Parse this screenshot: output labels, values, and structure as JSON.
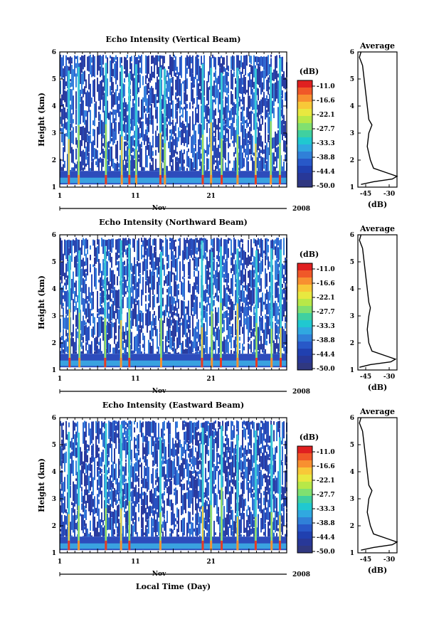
{
  "colorbar": {
    "unit": "(dB)",
    "labels": [
      "-11.0",
      "-16.6",
      "-22.1",
      "-27.7",
      "-33.3",
      "-38.8",
      "-44.4",
      "-50.0"
    ],
    "colors": [
      "#e02020",
      "#f05828",
      "#f89030",
      "#f8c838",
      "#e8e840",
      "#b8e848",
      "#80e070",
      "#40d0a0",
      "#20c8d0",
      "#30a8e0",
      "#3080d8",
      "#2858c8",
      "#2040b0",
      "#283898",
      "#303880"
    ]
  },
  "panels": [
    {
      "title": "Echo Intensity (Vertical Beam)",
      "avg_title": "Average"
    },
    {
      "title": "Echo Intensity (Northward Beam)",
      "avg_title": "Average"
    },
    {
      "title": "Echo Intensity (Eastward Beam)",
      "avg_title": "Average"
    }
  ],
  "axes": {
    "ylabel": "Height (km)",
    "y_ticks": [
      "1",
      "2",
      "3",
      "4",
      "5",
      "6"
    ],
    "x_ticks": [
      "1",
      "11",
      "21"
    ],
    "month": "Nov",
    "year": "2008",
    "avg_x_ticks": [
      "-45",
      "-30"
    ],
    "avg_xlabel": "(dB)",
    "xlabel": "Local Time (Day)"
  },
  "chart_data": [
    {
      "type": "heatmap",
      "title": "Echo Intensity (Vertical Beam)",
      "ylabel": "Height (km)",
      "xlabel": "",
      "ylim": [
        1,
        6
      ],
      "xlim": [
        1,
        31
      ],
      "colorbar_range_db": [
        -50.0,
        -11.0
      ],
      "bright_columns_day": [
        2.2,
        3.5,
        7.1,
        9.2,
        10.2,
        11.1,
        14.3,
        14.9,
        19.9,
        21.0,
        22.4,
        24.5,
        26.9,
        28.9,
        30.1
      ],
      "avg_profile": {
        "xlim": [
          -50,
          -25
        ],
        "height": [
          1.1,
          1.2,
          1.3,
          1.4,
          1.5,
          1.7,
          2.0,
          2.5,
          3.0,
          3.3,
          3.5,
          4.0,
          4.5,
          5.0,
          5.5,
          5.8,
          6.0
        ],
        "db": [
          -48,
          -40,
          -28,
          -25,
          -30,
          -40,
          -42,
          -44,
          -43,
          -41,
          -43,
          -44,
          -45,
          -46,
          -47,
          -49,
          -48
        ]
      }
    },
    {
      "type": "heatmap",
      "title": "Echo Intensity (Northward Beam)",
      "ylabel": "Height (km)",
      "xlabel": "",
      "ylim": [
        1,
        6
      ],
      "xlim": [
        1,
        31
      ],
      "colorbar_range_db": [
        -50.0,
        -11.0
      ],
      "bright_columns_day": [
        2.3,
        3.6,
        7.0,
        9.1,
        10.2,
        14.4,
        19.8,
        21.1,
        22.3,
        24.5,
        27.0,
        29.0,
        30.2
      ],
      "avg_profile": {
        "xlim": [
          -50,
          -25
        ],
        "height": [
          1.1,
          1.2,
          1.3,
          1.4,
          1.5,
          1.7,
          2.0,
          2.5,
          3.0,
          3.3,
          3.5,
          4.0,
          4.5,
          5.0,
          5.5,
          5.8,
          6.0
        ],
        "db": [
          -49,
          -42,
          -29,
          -26,
          -31,
          -41,
          -43,
          -44,
          -43,
          -42,
          -43,
          -44,
          -45,
          -46,
          -47,
          -49,
          -48
        ]
      }
    },
    {
      "type": "heatmap",
      "title": "Echo Intensity (Eastward Beam)",
      "ylabel": "Height (km)",
      "xlabel": "Local Time (Day)",
      "ylim": [
        1,
        6
      ],
      "xlim": [
        1,
        31
      ],
      "colorbar_range_db": [
        -50.0,
        -11.0
      ],
      "bright_columns_day": [
        2.2,
        3.5,
        7.1,
        9.1,
        10.2,
        14.3,
        19.9,
        21.0,
        22.4,
        24.5,
        26.9,
        29.0,
        30.1
      ],
      "avg_profile": {
        "xlim": [
          -50,
          -25
        ],
        "height": [
          1.1,
          1.2,
          1.3,
          1.4,
          1.5,
          1.7,
          2.0,
          2.5,
          3.0,
          3.3,
          3.5,
          4.0,
          4.5,
          5.0,
          5.5,
          5.8,
          6.0
        ],
        "db": [
          -48,
          -40,
          -28,
          -25,
          -30,
          -40,
          -42,
          -44,
          -43,
          -41,
          -43,
          -44,
          -45,
          -46,
          -47,
          -49,
          -48
        ]
      }
    }
  ]
}
